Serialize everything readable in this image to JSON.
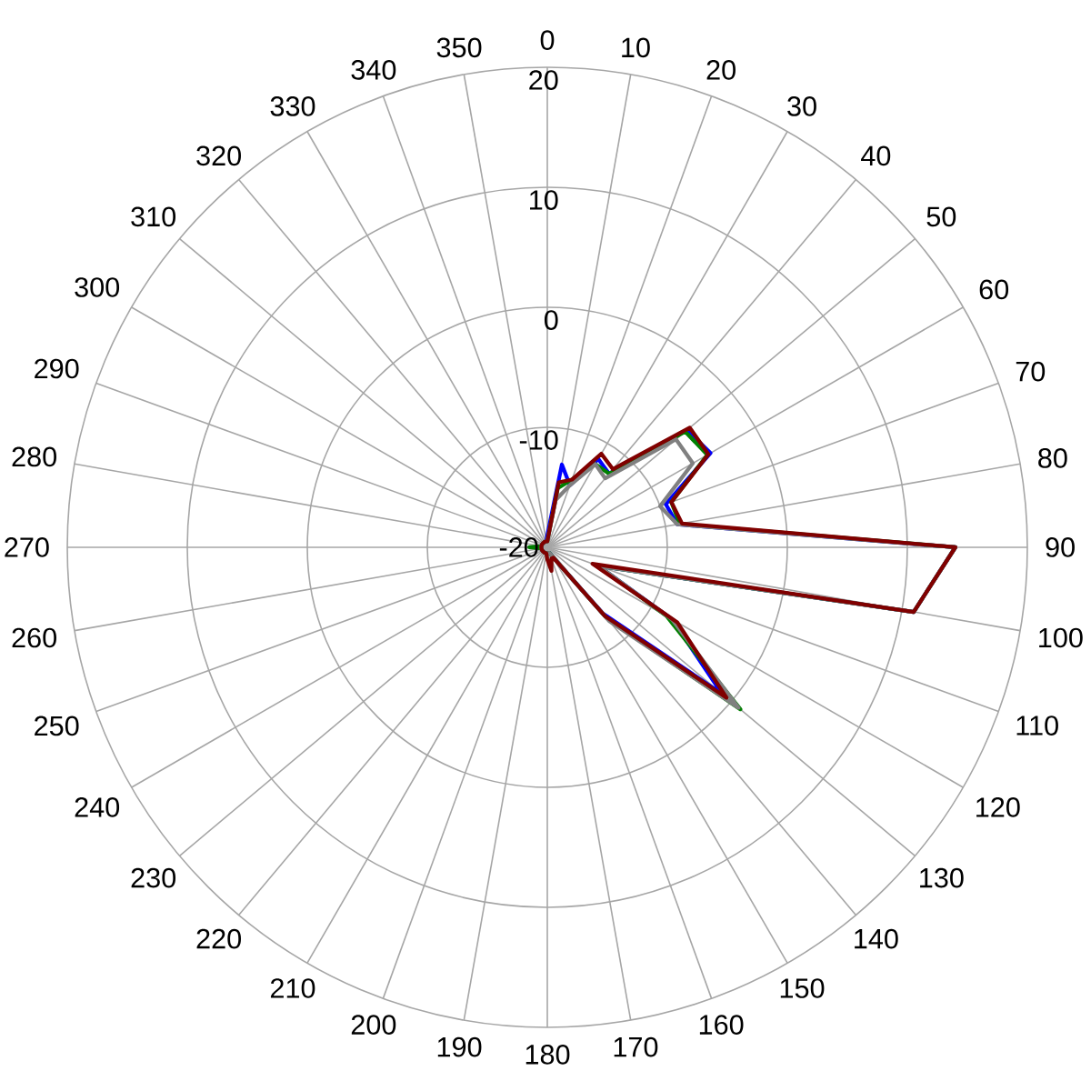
{
  "chart_data": {
    "type": "radar",
    "grid": true,
    "categories": [
      "0",
      "10",
      "20",
      "30",
      "40",
      "50",
      "60",
      "70",
      "80",
      "90",
      "100",
      "110",
      "120",
      "130",
      "140",
      "150",
      "160",
      "170",
      "180",
      "190",
      "200",
      "210",
      "220",
      "230",
      "240",
      "250",
      "260",
      "270",
      "280",
      "290",
      "300",
      "310",
      "320",
      "330",
      "340",
      "350"
    ],
    "ylim": [
      -20,
      20
    ],
    "yticks": [
      -20,
      -10,
      0,
      10,
      20
    ],
    "series": [
      {
        "color": "#0000ff",
        "values": [
          -19,
          -13,
          -14.5,
          -11.5,
          -12,
          -4.8,
          -4.3,
          -9.5,
          -9,
          14,
          11,
          -15.5,
          -8,
          -1,
          -12.8,
          -19,
          -19.5,
          -19.5,
          -19.5,
          -19.5,
          -19.5,
          -19.5,
          -19.5,
          -19.5,
          -19.5,
          -19.5,
          -19.5,
          -19.5,
          -19.5,
          -19.5,
          -19.5,
          -19.5,
          -19.5,
          -19.5,
          -19.5,
          -19.5
        ]
      },
      {
        "color": "#008000",
        "values": [
          -19.5,
          -15,
          -14,
          -12,
          -12,
          -5,
          -4.6,
          -9,
          -8.8,
          14,
          11,
          -15.5,
          -8.5,
          1,
          -12.3,
          -19,
          -19.5,
          -19.5,
          -19.5,
          -19.5,
          -19.5,
          -19.5,
          -19.5,
          -19.5,
          -19.5,
          -19.5,
          -19.5,
          -18.5,
          -19.5,
          -19.5,
          -19.5,
          -19.5,
          -19.5,
          -19.5,
          -19.5,
          -19.5
        ]
      },
      {
        "color": "#808080",
        "values": [
          -19.5,
          -16,
          -14.5,
          -12,
          -12.5,
          -6,
          -6,
          -10,
          -9,
          14,
          11,
          -15.5,
          -8,
          0.8,
          -12,
          -19,
          -19.5,
          -19.5,
          -19.5,
          -19.5,
          -19.5,
          -19.5,
          -19.5,
          -19.5,
          -19.5,
          -19.5,
          -19.5,
          -19.5,
          -19.5,
          -19.5,
          -19.5,
          -19.5,
          -19.5,
          -19.5,
          -19.5,
          -19.5
        ]
      },
      {
        "color": "#800000",
        "values": [
          -19.5,
          -14.5,
          -14,
          -11,
          -11.5,
          -4.5,
          -4.5,
          -9,
          -8.6,
          14,
          11,
          -16,
          -7.5,
          -0.5,
          -12.5,
          -19,
          -19,
          -18,
          -19,
          -19.5,
          -19.5,
          -19.5,
          -19.5,
          -19.5,
          -19.5,
          -19.5,
          -19.5,
          -19.5,
          -19.5,
          -19.5,
          -19.5,
          -19.5,
          -19.5,
          -19.5,
          -19.5,
          -19.5
        ]
      }
    ]
  }
}
